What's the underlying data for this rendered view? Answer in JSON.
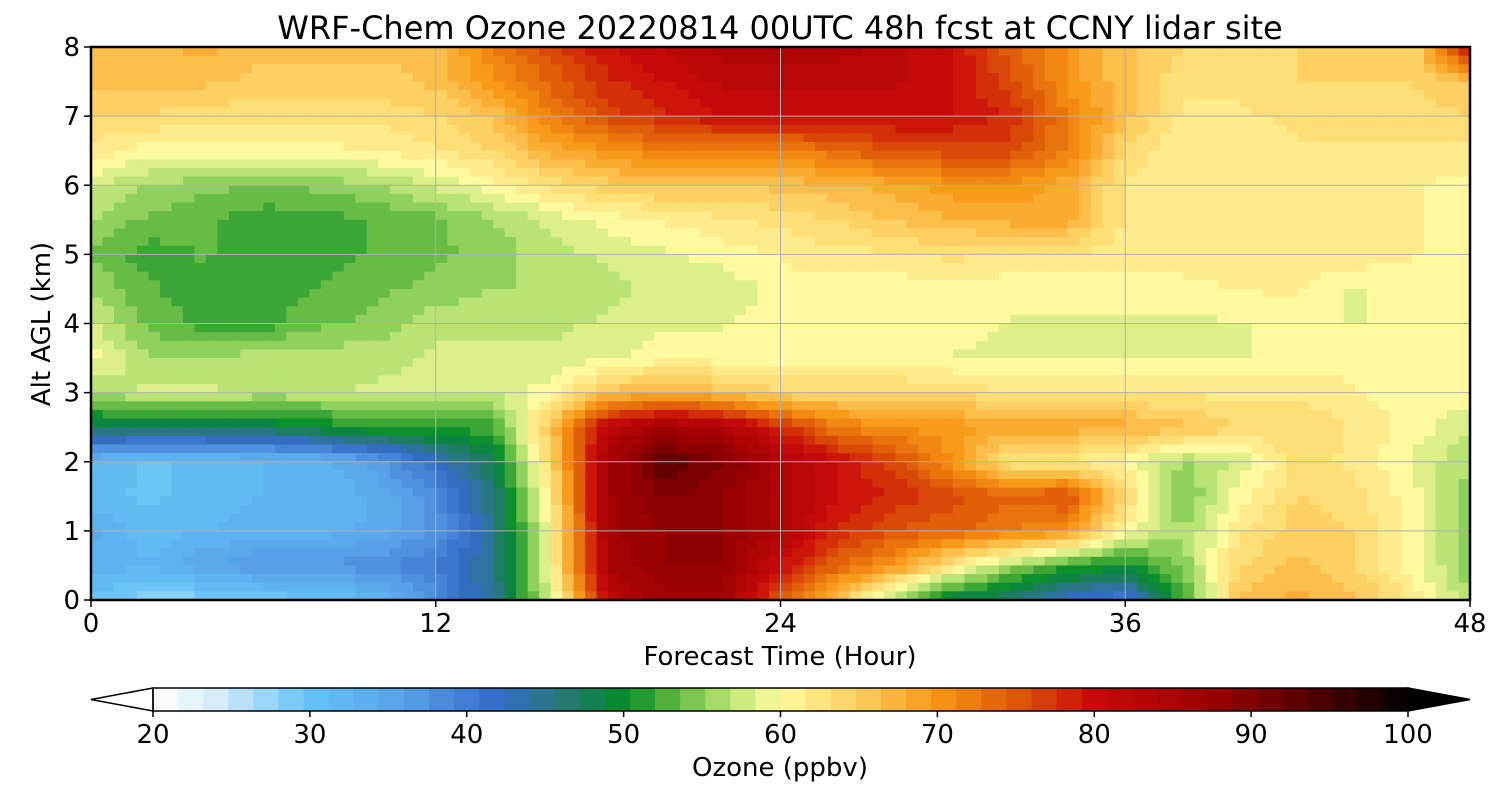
{
  "chart_data": {
    "type": "heatmap",
    "title": "WRF-Chem Ozone  20220814 00UTC 48h fcst at CCNY lidar site",
    "xlabel": "Forecast Time (Hour)",
    "ylabel": "Alt AGL (km)",
    "xlim": [
      0,
      48
    ],
    "ylim": [
      0,
      8
    ],
    "x_ticks": [
      "0",
      "12",
      "24",
      "36",
      "48"
    ],
    "y_ticks": [
      "0",
      "1",
      "2",
      "3",
      "4",
      "5",
      "6",
      "7",
      "8"
    ],
    "grid": true,
    "colorbar": {
      "label": "Ozone  (ppbv)",
      "range": [
        20,
        100
      ],
      "ticks": [
        "20",
        "30",
        "40",
        "50",
        "60",
        "70",
        "80",
        "90",
        "100"
      ],
      "extend": "both",
      "step": 1.6
    },
    "x": [
      0,
      2,
      4,
      6,
      8,
      10,
      12,
      14,
      16,
      18,
      20,
      22,
      24,
      26,
      28,
      30,
      32,
      34,
      36,
      38,
      40,
      42,
      44,
      46,
      48
    ],
    "y": [
      0,
      0.5,
      1,
      1.5,
      2,
      2.5,
      3,
      3.5,
      4,
      4.5,
      5,
      5.5,
      6,
      6.5,
      7,
      7.5,
      8
    ],
    "z": [
      [
        30,
        28,
        28,
        29,
        30,
        32,
        38,
        45,
        58,
        82,
        86,
        86,
        75,
        66,
        55,
        48,
        46,
        42,
        40,
        52,
        66,
        68,
        66,
        62,
        56
      ],
      [
        33,
        32,
        35,
        37,
        37,
        38,
        40,
        45,
        60,
        85,
        88,
        88,
        80,
        74,
        70,
        62,
        56,
        52,
        50,
        55,
        64,
        66,
        64,
        60,
        55
      ],
      [
        34,
        31,
        32,
        33,
        33,
        34,
        37,
        45,
        60,
        86,
        88,
        88,
        84,
        78,
        75,
        74,
        72,
        70,
        60,
        56,
        62,
        65,
        64,
        60,
        55
      ],
      [
        31,
        30,
        31,
        32,
        32,
        34,
        38,
        46,
        62,
        86,
        90,
        88,
        84,
        80,
        78,
        76,
        74,
        76,
        64,
        54,
        60,
        64,
        63,
        60,
        55
      ],
      [
        32,
        30,
        31,
        32,
        33,
        36,
        42,
        48,
        64,
        86,
        93,
        90,
        84,
        80,
        76,
        70,
        62,
        62,
        60,
        56,
        58,
        63,
        62,
        59,
        56
      ],
      [
        48,
        48,
        48,
        48,
        50,
        52,
        52,
        52,
        66,
        82,
        86,
        84,
        78,
        72,
        70,
        70,
        68,
        68,
        68,
        66,
        64,
        64,
        62,
        60,
        58
      ],
      [
        56,
        58,
        58,
        57,
        57,
        58,
        58,
        58,
        60,
        66,
        68,
        66,
        64,
        64,
        64,
        64,
        62,
        62,
        62,
        62,
        62,
        62,
        61,
        60,
        60
      ],
      [
        60,
        56,
        56,
        57,
        57,
        57,
        58,
        58,
        58,
        59,
        60,
        60,
        60,
        60,
        60,
        59,
        59,
        59,
        59,
        59,
        59,
        60,
        60,
        60,
        60
      ],
      [
        58,
        54,
        52,
        52,
        54,
        55,
        57,
        57,
        57,
        58,
        59,
        59,
        60,
        60,
        60,
        60,
        59,
        59,
        59,
        59,
        59,
        60,
        59,
        60,
        60
      ],
      [
        56,
        53,
        52,
        52,
        53,
        54,
        55,
        56,
        56,
        57,
        58,
        58,
        60,
        60,
        60,
        60,
        60,
        60,
        60,
        60,
        61,
        61,
        59,
        60,
        60
      ],
      [
        54,
        52,
        53,
        52,
        52,
        53,
        54,
        55,
        57,
        58,
        59,
        60,
        61,
        62,
        62,
        63,
        62,
        62,
        62,
        62,
        62,
        62,
        62,
        61,
        60
      ],
      [
        56,
        54,
        53,
        52,
        52,
        53,
        54,
        56,
        58,
        60,
        61,
        62,
        63,
        64,
        66,
        67,
        68,
        68,
        62,
        62,
        62,
        62,
        62,
        61,
        60
      ],
      [
        58,
        56,
        55,
        54,
        55,
        56,
        58,
        60,
        63,
        65,
        66,
        66,
        66,
        67,
        68,
        70,
        70,
        68,
        62,
        61,
        61,
        62,
        62,
        61,
        60
      ],
      [
        62,
        60,
        60,
        60,
        60,
        61,
        62,
        64,
        68,
        70,
        72,
        72,
        72,
        73,
        76,
        76,
        76,
        72,
        64,
        61,
        61,
        62,
        62,
        62,
        62
      ],
      [
        64,
        64,
        63,
        63,
        63,
        63,
        64,
        66,
        72,
        76,
        78,
        80,
        80,
        80,
        80,
        80,
        78,
        72,
        66,
        62,
        62,
        63,
        64,
        63,
        64
      ],
      [
        66,
        66,
        66,
        65,
        65,
        65,
        66,
        70,
        74,
        78,
        80,
        82,
        82,
        82,
        82,
        80,
        76,
        70,
        66,
        63,
        63,
        64,
        64,
        64,
        66
      ],
      [
        66,
        66,
        68,
        66,
        66,
        66,
        66,
        72,
        76,
        80,
        82,
        84,
        84,
        84,
        82,
        80,
        74,
        70,
        66,
        64,
        64,
        64,
        64,
        64,
        80
      ]
    ]
  }
}
